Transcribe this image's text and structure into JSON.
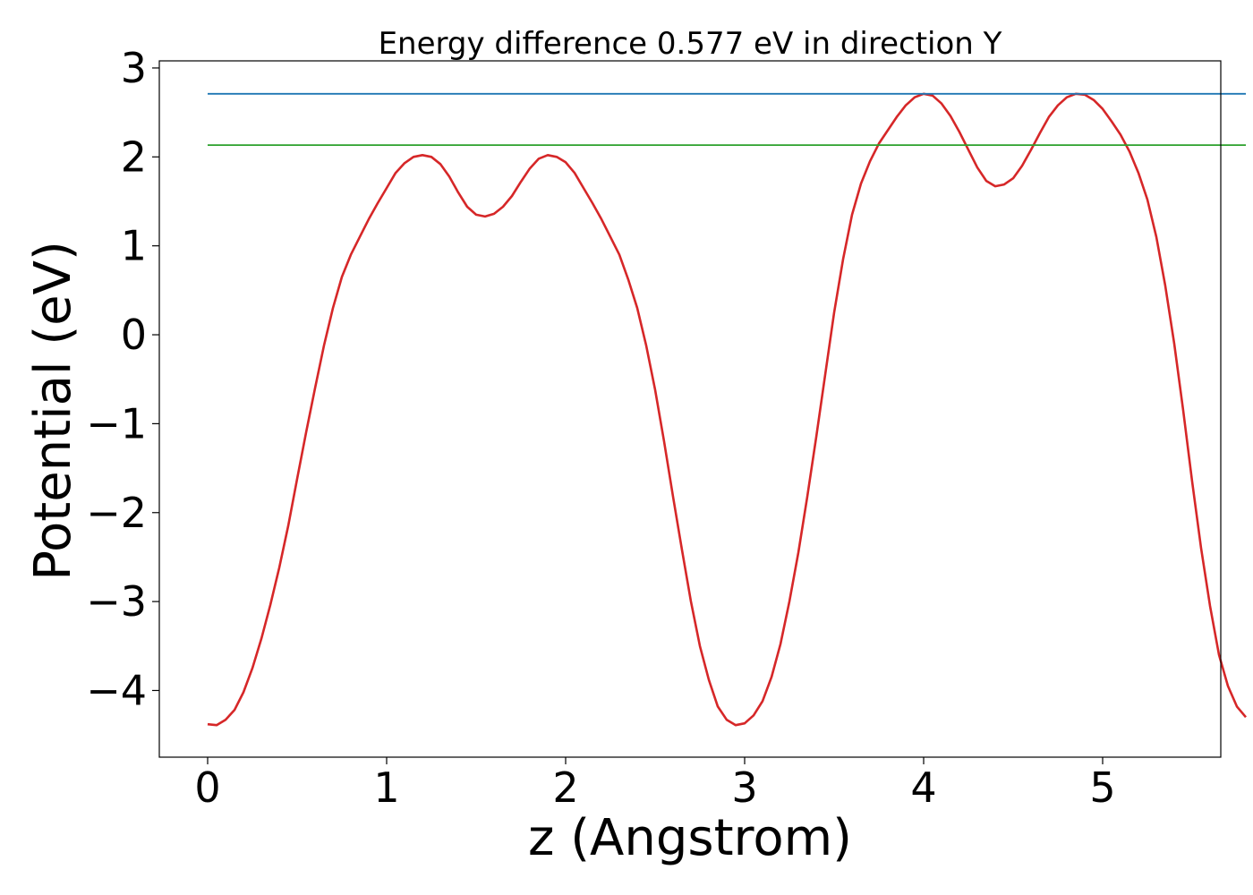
{
  "chart_data": {
    "type": "line",
    "title": "Energy difference 0.577 eV in direction Y",
    "xlabel": "z (Angstrom)",
    "ylabel": "Potential (eV)",
    "xlim": [
      -0.27,
      5.66
    ],
    "ylim": [
      -4.75,
      3.08
    ],
    "xticks": [
      0,
      1,
      2,
      3,
      4,
      5
    ],
    "yticks": [
      -4,
      -3,
      -2,
      -1,
      0,
      1,
      2,
      3
    ],
    "xtick_labels": [
      "0",
      "1",
      "2",
      "3",
      "4",
      "5"
    ],
    "ytick_labels": [
      "−4",
      "−3",
      "−2",
      "−1",
      "0",
      "1",
      "2",
      "3"
    ],
    "grid": false,
    "series": [
      {
        "color": "#d62728",
        "points": [
          [
            0.0,
            -4.38
          ],
          [
            0.05,
            -4.39
          ],
          [
            0.1,
            -4.33
          ],
          [
            0.15,
            -4.22
          ],
          [
            0.2,
            -4.02
          ],
          [
            0.25,
            -3.75
          ],
          [
            0.3,
            -3.42
          ],
          [
            0.35,
            -3.04
          ],
          [
            0.4,
            -2.62
          ],
          [
            0.45,
            -2.15
          ],
          [
            0.5,
            -1.62
          ],
          [
            0.55,
            -1.1
          ],
          [
            0.6,
            -0.6
          ],
          [
            0.65,
            -0.12
          ],
          [
            0.7,
            0.3
          ],
          [
            0.75,
            0.65
          ],
          [
            0.8,
            0.9
          ],
          [
            0.85,
            1.1
          ],
          [
            0.9,
            1.3
          ],
          [
            0.95,
            1.48
          ],
          [
            1.0,
            1.65
          ],
          [
            1.05,
            1.82
          ],
          [
            1.1,
            1.93
          ],
          [
            1.15,
            2.0
          ],
          [
            1.2,
            2.02
          ],
          [
            1.25,
            2.0
          ],
          [
            1.3,
            1.92
          ],
          [
            1.35,
            1.78
          ],
          [
            1.4,
            1.6
          ],
          [
            1.45,
            1.44
          ],
          [
            1.5,
            1.35
          ],
          [
            1.55,
            1.33
          ],
          [
            1.6,
            1.36
          ],
          [
            1.65,
            1.44
          ],
          [
            1.7,
            1.56
          ],
          [
            1.75,
            1.72
          ],
          [
            1.8,
            1.87
          ],
          [
            1.85,
            1.98
          ],
          [
            1.9,
            2.02
          ],
          [
            1.95,
            2.0
          ],
          [
            2.0,
            1.94
          ],
          [
            2.05,
            1.82
          ],
          [
            2.1,
            1.65
          ],
          [
            2.15,
            1.48
          ],
          [
            2.2,
            1.3
          ],
          [
            2.25,
            1.1
          ],
          [
            2.3,
            0.9
          ],
          [
            2.35,
            0.62
          ],
          [
            2.4,
            0.3
          ],
          [
            2.45,
            -0.12
          ],
          [
            2.5,
            -0.62
          ],
          [
            2.55,
            -1.2
          ],
          [
            2.6,
            -1.82
          ],
          [
            2.65,
            -2.42
          ],
          [
            2.7,
            -3.0
          ],
          [
            2.75,
            -3.5
          ],
          [
            2.8,
            -3.88
          ],
          [
            2.85,
            -4.18
          ],
          [
            2.9,
            -4.33
          ],
          [
            2.95,
            -4.39
          ],
          [
            3.0,
            -4.37
          ],
          [
            3.05,
            -4.28
          ],
          [
            3.1,
            -4.12
          ],
          [
            3.15,
            -3.85
          ],
          [
            3.2,
            -3.48
          ],
          [
            3.25,
            -3.0
          ],
          [
            3.3,
            -2.45
          ],
          [
            3.35,
            -1.82
          ],
          [
            3.4,
            -1.15
          ],
          [
            3.45,
            -0.45
          ],
          [
            3.5,
            0.25
          ],
          [
            3.55,
            0.85
          ],
          [
            3.6,
            1.35
          ],
          [
            3.65,
            1.7
          ],
          [
            3.7,
            1.95
          ],
          [
            3.75,
            2.15
          ],
          [
            3.8,
            2.3
          ],
          [
            3.85,
            2.45
          ],
          [
            3.9,
            2.58
          ],
          [
            3.95,
            2.67
          ],
          [
            4.0,
            2.71
          ],
          [
            4.05,
            2.69
          ],
          [
            4.1,
            2.6
          ],
          [
            4.15,
            2.46
          ],
          [
            4.2,
            2.28
          ],
          [
            4.25,
            2.08
          ],
          [
            4.3,
            1.88
          ],
          [
            4.35,
            1.73
          ],
          [
            4.4,
            1.67
          ],
          [
            4.45,
            1.69
          ],
          [
            4.5,
            1.76
          ],
          [
            4.55,
            1.9
          ],
          [
            4.6,
            2.08
          ],
          [
            4.65,
            2.27
          ],
          [
            4.7,
            2.45
          ],
          [
            4.75,
            2.58
          ],
          [
            4.8,
            2.67
          ],
          [
            4.85,
            2.71
          ],
          [
            4.9,
            2.7
          ],
          [
            4.95,
            2.64
          ],
          [
            5.0,
            2.54
          ],
          [
            5.05,
            2.4
          ],
          [
            5.1,
            2.25
          ],
          [
            5.15,
            2.06
          ],
          [
            5.2,
            1.82
          ],
          [
            5.25,
            1.52
          ],
          [
            5.3,
            1.1
          ],
          [
            5.35,
            0.55
          ],
          [
            5.4,
            -0.1
          ],
          [
            5.45,
            -0.85
          ],
          [
            5.5,
            -1.65
          ],
          [
            5.55,
            -2.4
          ],
          [
            5.6,
            -3.05
          ],
          [
            5.65,
            -3.6
          ],
          [
            5.7,
            -3.95
          ],
          [
            5.75,
            -4.18
          ],
          [
            5.8,
            -4.3
          ]
        ]
      },
      {
        "color": "#1f77b4",
        "points": [
          [
            0.0,
            2.71
          ],
          [
            5.8,
            2.71
          ]
        ]
      },
      {
        "color": "#2ca02c",
        "points": [
          [
            0.0,
            2.133
          ],
          [
            5.8,
            2.133
          ]
        ]
      }
    ]
  }
}
